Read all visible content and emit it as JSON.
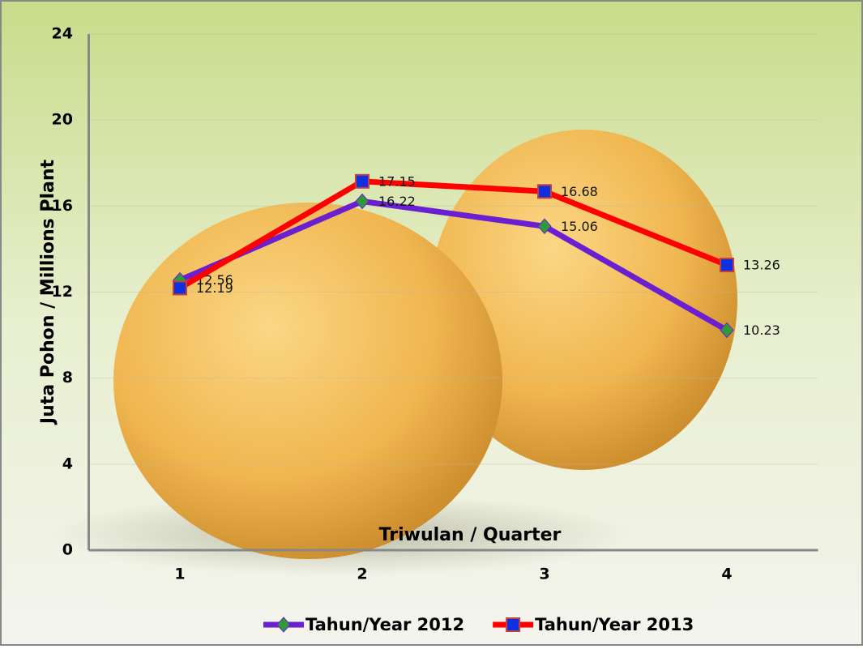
{
  "chart_data": {
    "type": "line",
    "y_label": "Juta Pohon / Millions Plant",
    "x_label": "Triwulan / Quarter",
    "categories": [
      "1",
      "2",
      "3",
      "4"
    ],
    "series": [
      {
        "name": "Tahun/Year 2012",
        "color": "#6a1fd0",
        "marker": "diamond",
        "marker_color": "#2e9a3a",
        "values": [
          12.56,
          16.22,
          15.06,
          10.23
        ]
      },
      {
        "name": "Tahun/Year 2013",
        "color": "#ff0000",
        "marker": "square",
        "marker_color": "#1030e0",
        "values": [
          12.19,
          17.15,
          16.68,
          13.26
        ]
      }
    ],
    "ylim": [
      0,
      24
    ],
    "yticks": [
      0,
      4,
      8,
      12,
      16,
      20,
      24
    ],
    "grid": true,
    "legend": "bottom"
  }
}
